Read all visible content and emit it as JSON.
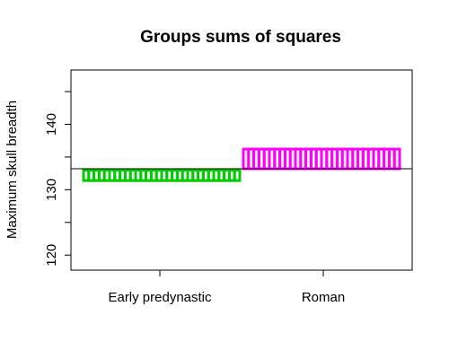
{
  "chart_data": {
    "type": "bar",
    "title": "Groups sums of squares",
    "xlabel": "",
    "ylabel": "Maximum skull breadth",
    "ylim": [
      117.7,
      148.3
    ],
    "yticks": [
      120,
      130,
      140
    ],
    "ytick_labels": [
      "120",
      "130",
      "140"
    ],
    "categories": [
      "Early predynastic",
      "Roman"
    ],
    "grand_mean": 133.2,
    "series": [
      {
        "group": "Early predynastic",
        "color": "#00cc00",
        "n": 30,
        "bottom": 131.4,
        "top": 133.0
      },
      {
        "group": "Roman",
        "color": "#ff00ff",
        "n": 30,
        "bottom": 133.2,
        "top": 136.2
      }
    ],
    "grid": false,
    "legend": "none"
  }
}
